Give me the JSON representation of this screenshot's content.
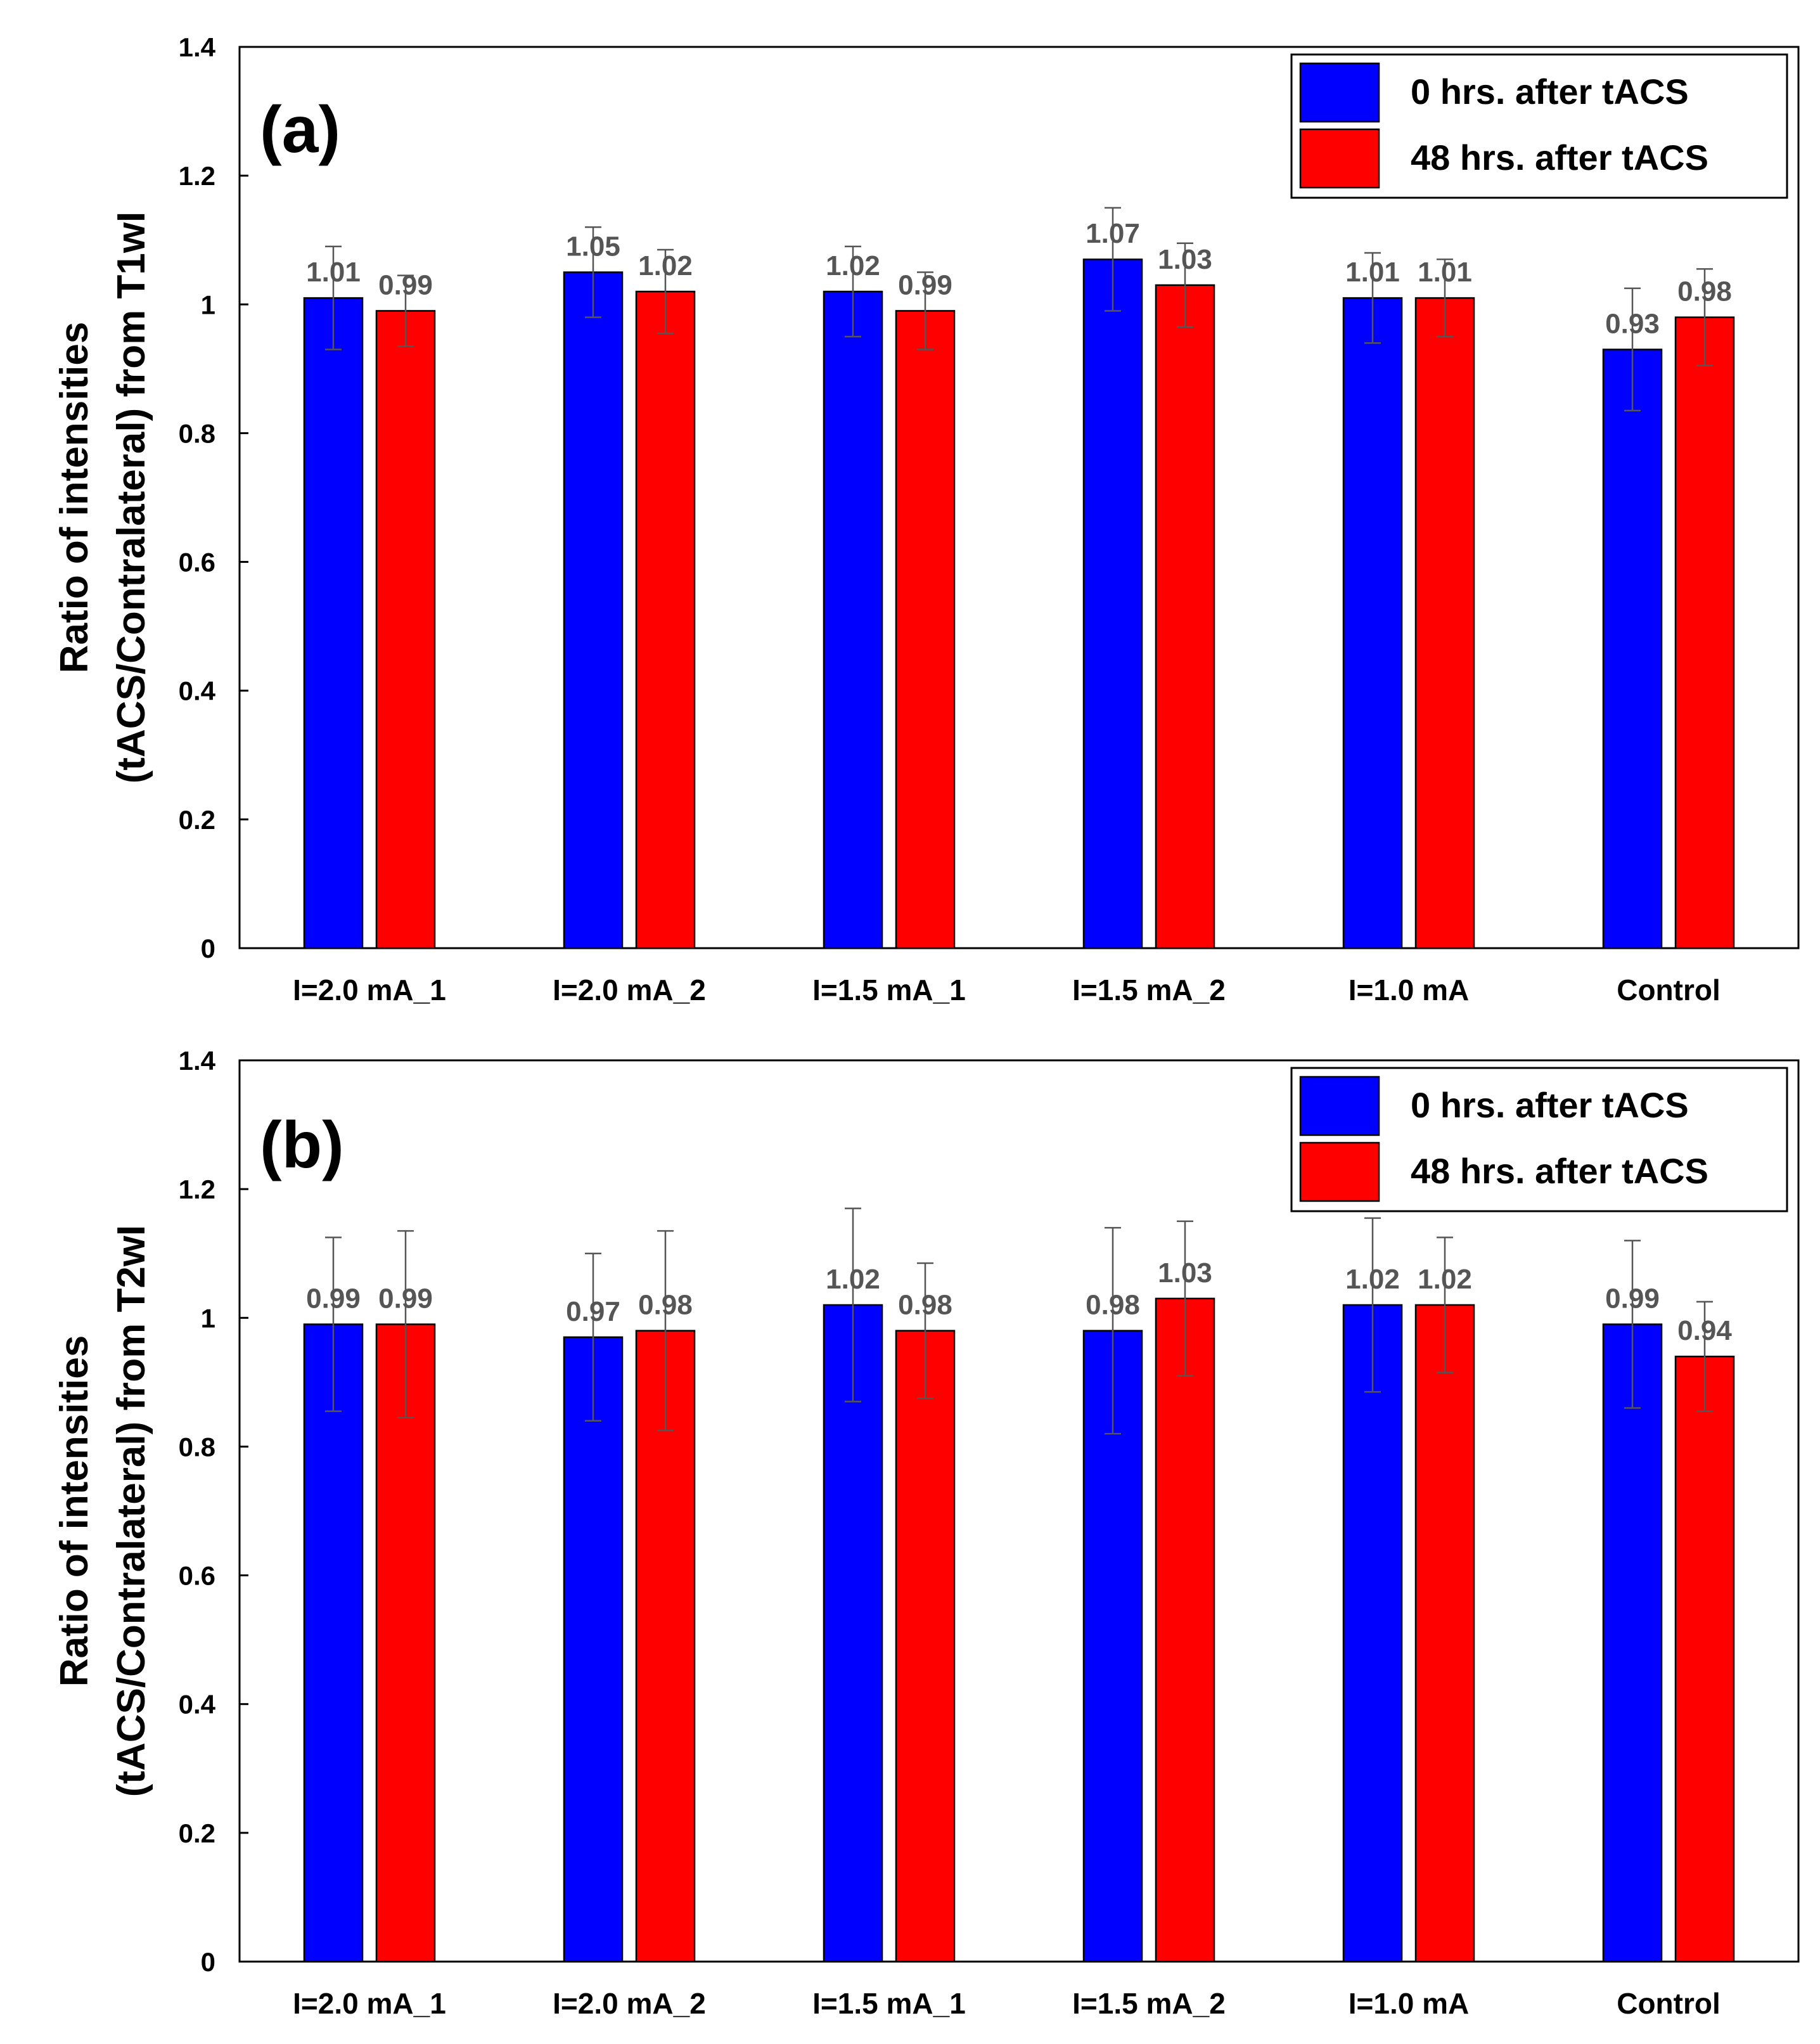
{
  "chart_data": [
    {
      "type": "bar",
      "panel_label": "(a)",
      "ylabel_line1": "Ratio of intensities",
      "ylabel_line2": "(tACS/Contralateral) from T1wI",
      "ylim": [
        0,
        1.4
      ],
      "yticks": [
        "0",
        "0.2",
        "0.4",
        "0.6",
        "0.8",
        "1",
        "1.2",
        "1.4"
      ],
      "categories": [
        "I=2.0 mA_1",
        "I=2.0 mA_2",
        "I=1.5 mA_1",
        "I=1.5 mA_2",
        "I=1.0 mA",
        "Control"
      ],
      "legend_position": "top-right",
      "series": [
        {
          "name": "0 hrs. after tACS",
          "color": "#0000ff",
          "values": [
            1.01,
            1.05,
            1.02,
            1.07,
            1.01,
            0.93
          ],
          "labels": [
            "1.01",
            "1.05",
            "1.02",
            "1.07",
            "1.01",
            "0.93"
          ],
          "errors": [
            0.08,
            0.07,
            0.07,
            0.08,
            0.07,
            0.095
          ]
        },
        {
          "name": "48 hrs. after tACS",
          "color": "#ff0000",
          "values": [
            0.99,
            1.02,
            0.99,
            1.03,
            1.01,
            0.98
          ],
          "labels": [
            "0.99",
            "1.02",
            "0.99",
            "1.03",
            "1.01",
            "0.98"
          ],
          "errors": [
            0.055,
            0.065,
            0.06,
            0.065,
            0.06,
            0.075
          ]
        }
      ]
    },
    {
      "type": "bar",
      "panel_label": "(b)",
      "ylabel_line1": "Ratio of intensities",
      "ylabel_line2": "(tACS/Contralateral) from T2wI",
      "ylim": [
        0,
        1.4
      ],
      "yticks": [
        "0",
        "0.2",
        "0.4",
        "0.6",
        "0.8",
        "1",
        "1.2",
        "1.4"
      ],
      "categories": [
        "I=2.0 mA_1",
        "I=2.0 mA_2",
        "I=1.5 mA_1",
        "I=1.5 mA_2",
        "I=1.0 mA",
        "Control"
      ],
      "legend_position": "top-right",
      "series": [
        {
          "name": "0 hrs. after tACS",
          "color": "#0000ff",
          "values": [
            0.99,
            0.97,
            1.02,
            0.98,
            1.02,
            0.99
          ],
          "labels": [
            "0.99",
            "0.97",
            "1.02",
            "0.98",
            "1.02",
            "0.99"
          ],
          "errors": [
            0.135,
            0.13,
            0.15,
            0.16,
            0.135,
            0.13
          ]
        },
        {
          "name": "48 hrs. after tACS",
          "color": "#ff0000",
          "values": [
            0.99,
            0.98,
            0.98,
            1.03,
            1.02,
            0.94
          ],
          "labels": [
            "0.99",
            "0.98",
            "0.98",
            "1.03",
            "1.02",
            "0.94"
          ],
          "errors": [
            0.145,
            0.155,
            0.105,
            0.12,
            0.105,
            0.085
          ]
        }
      ]
    }
  ]
}
